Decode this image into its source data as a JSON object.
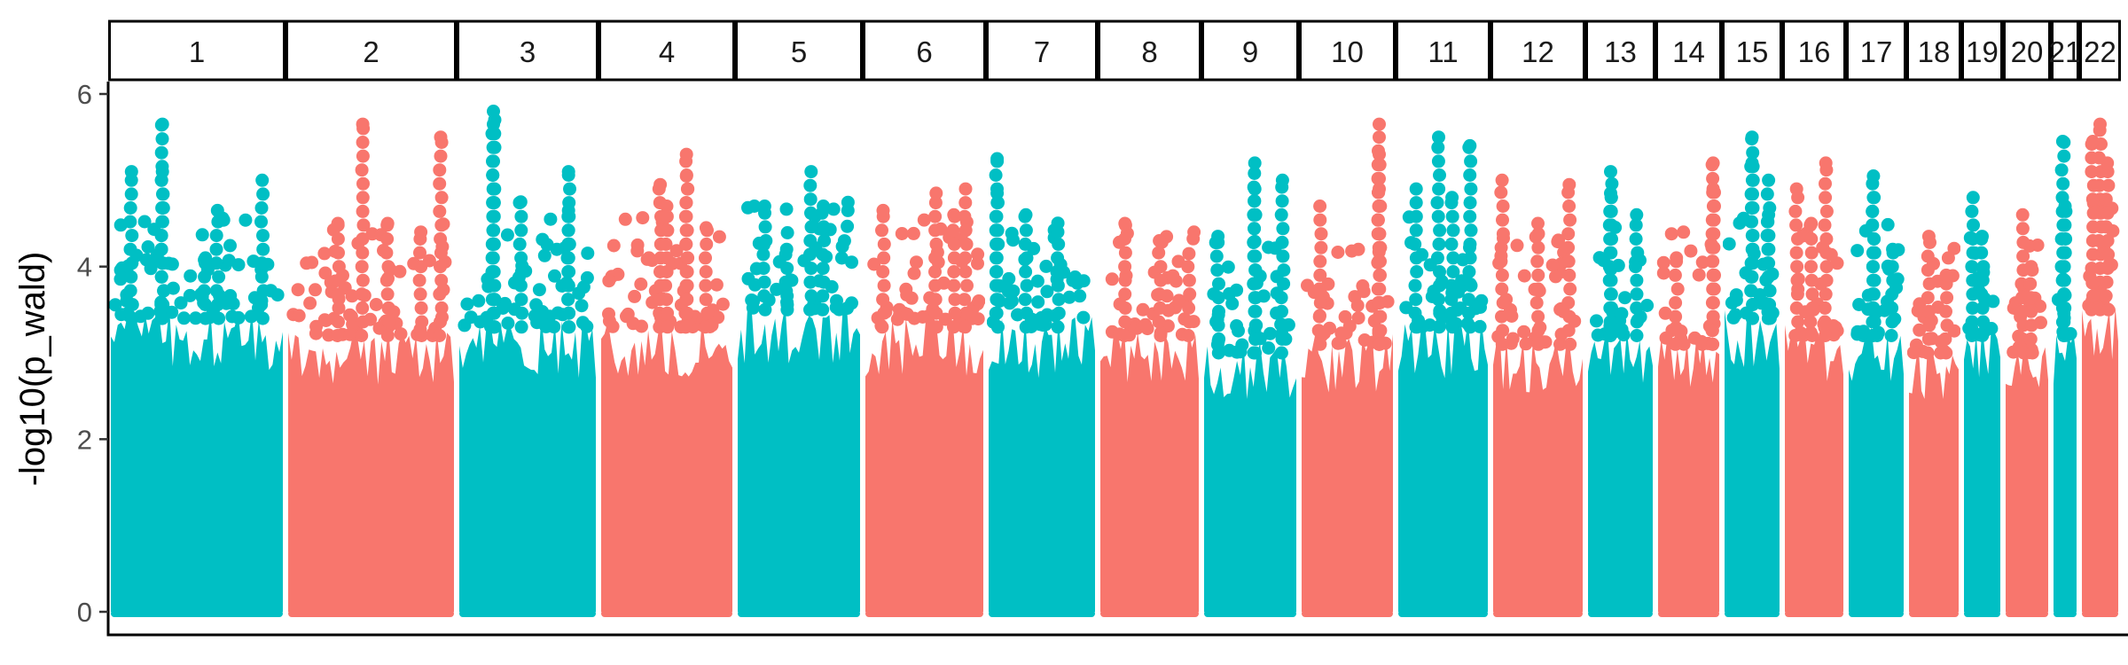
{
  "chart_data": {
    "type": "scatter",
    "subtype": "manhattan",
    "title": "",
    "xlabel": "",
    "ylabel": "-log10(p_wald)",
    "ylim": [
      0,
      6.2
    ],
    "yticks": [
      0,
      2,
      4,
      6
    ],
    "grid": false,
    "legend": "none",
    "colors": {
      "odd": "#00BFC4",
      "even": "#F8766D"
    },
    "chromosomes": [
      {
        "label": "1",
        "max": 5.7,
        "bulk": 3.4,
        "peaks": [
          [
            0.3,
            5.65
          ],
          [
            0.3,
            5.1
          ],
          [
            0.12,
            5.1
          ],
          [
            0.62,
            4.65
          ],
          [
            0.88,
            5.0
          ],
          [
            0.55,
            4.1
          ]
        ]
      },
      {
        "label": "2",
        "max": 5.65,
        "bulk": 3.2,
        "peaks": [
          [
            0.45,
            5.65
          ],
          [
            0.92,
            5.5
          ],
          [
            0.3,
            4.5
          ],
          [
            0.6,
            4.5
          ],
          [
            0.8,
            4.4
          ]
        ]
      },
      {
        "label": "3",
        "max": 5.8,
        "bulk": 3.3,
        "peaks": [
          [
            0.25,
            5.8
          ],
          [
            0.25,
            5.65
          ],
          [
            0.25,
            4.9
          ],
          [
            0.45,
            4.75
          ],
          [
            0.8,
            5.1
          ],
          [
            0.8,
            4.65
          ]
        ]
      },
      {
        "label": "4",
        "max": 5.3,
        "bulk": 3.3,
        "peaks": [
          [
            0.65,
            5.3
          ],
          [
            0.65,
            5.05
          ],
          [
            0.45,
            4.95
          ],
          [
            0.5,
            4.7
          ],
          [
            0.8,
            4.45
          ]
        ]
      },
      {
        "label": "5",
        "max": 5.1,
        "bulk": 3.5,
        "peaks": [
          [
            0.6,
            5.1
          ],
          [
            0.7,
            4.7
          ],
          [
            0.22,
            4.7
          ],
          [
            0.4,
            4.2
          ]
        ]
      },
      {
        "label": "6",
        "max": 4.9,
        "bulk": 3.3,
        "peaks": [
          [
            0.6,
            4.85
          ],
          [
            0.85,
            4.9
          ],
          [
            0.15,
            4.65
          ],
          [
            0.75,
            4.6
          ]
        ]
      },
      {
        "label": "7",
        "max": 5.25,
        "bulk": 3.3,
        "peaks": [
          [
            0.08,
            5.25
          ],
          [
            0.08,
            4.85
          ],
          [
            0.35,
            4.6
          ],
          [
            0.65,
            4.4
          ]
        ]
      },
      {
        "label": "8",
        "max": 4.5,
        "bulk": 3.2,
        "peaks": [
          [
            0.25,
            4.5
          ],
          [
            0.6,
            4.3
          ],
          [
            0.9,
            4.15
          ]
        ]
      },
      {
        "label": "9",
        "max": 5.2,
        "bulk": 3.0,
        "peaks": [
          [
            0.55,
            5.2
          ],
          [
            0.85,
            5.0
          ],
          [
            0.55,
            4.9
          ],
          [
            0.15,
            4.35
          ]
        ]
      },
      {
        "label": "10",
        "max": 5.65,
        "bulk": 3.1,
        "peaks": [
          [
            0.85,
            5.65
          ],
          [
            0.85,
            5.3
          ],
          [
            0.85,
            4.9
          ],
          [
            0.2,
            4.7
          ]
        ]
      },
      {
        "label": "11",
        "max": 5.5,
        "bulk": 3.3,
        "peaks": [
          [
            0.45,
            5.5
          ],
          [
            0.8,
            5.4
          ],
          [
            0.2,
            4.9
          ],
          [
            0.6,
            4.8
          ]
        ]
      },
      {
        "label": "12",
        "max": 5.0,
        "bulk": 3.1,
        "peaks": [
          [
            0.1,
            5.0
          ],
          [
            0.85,
            4.95
          ],
          [
            0.5,
            4.5
          ]
        ]
      },
      {
        "label": "13",
        "max": 5.1,
        "bulk": 3.2,
        "peaks": [
          [
            0.35,
            5.1
          ],
          [
            0.35,
            4.85
          ],
          [
            0.75,
            4.6
          ]
        ]
      },
      {
        "label": "14",
        "max": 5.2,
        "bulk": 3.1,
        "peaks": [
          [
            0.9,
            5.2
          ],
          [
            0.9,
            4.9
          ],
          [
            0.3,
            4.1
          ]
        ]
      },
      {
        "label": "15",
        "max": 5.5,
        "bulk": 3.4,
        "peaks": [
          [
            0.5,
            5.5
          ],
          [
            0.5,
            5.2
          ],
          [
            0.8,
            5.0
          ],
          [
            0.8,
            4.6
          ]
        ]
      },
      {
        "label": "16",
        "max": 5.2,
        "bulk": 3.2,
        "peaks": [
          [
            0.7,
            5.2
          ],
          [
            0.2,
            4.9
          ],
          [
            0.45,
            4.5
          ]
        ]
      },
      {
        "label": "17",
        "max": 5.05,
        "bulk": 3.2,
        "peaks": [
          [
            0.45,
            5.05
          ],
          [
            0.45,
            4.8
          ],
          [
            0.8,
            4.2
          ]
        ]
      },
      {
        "label": "18",
        "max": 4.4,
        "bulk": 3.0,
        "peaks": [
          [
            0.4,
            4.35
          ],
          [
            0.75,
            3.9
          ]
        ]
      },
      {
        "label": "19",
        "max": 4.8,
        "bulk": 3.2,
        "peaks": [
          [
            0.25,
            4.8
          ],
          [
            0.5,
            4.35
          ]
        ]
      },
      {
        "label": "20",
        "max": 4.6,
        "bulk": 3.0,
        "peaks": [
          [
            0.4,
            4.6
          ],
          [
            0.6,
            4.0
          ]
        ]
      },
      {
        "label": "21",
        "max": 5.45,
        "bulk": 3.2,
        "peaks": [
          [
            0.4,
            5.45
          ],
          [
            0.5,
            4.7
          ]
        ]
      },
      {
        "label": "22",
        "max": 5.65,
        "bulk": 3.5,
        "peaks": [
          [
            0.5,
            5.65
          ],
          [
            0.3,
            5.45
          ],
          [
            0.7,
            5.2
          ]
        ]
      }
    ]
  }
}
